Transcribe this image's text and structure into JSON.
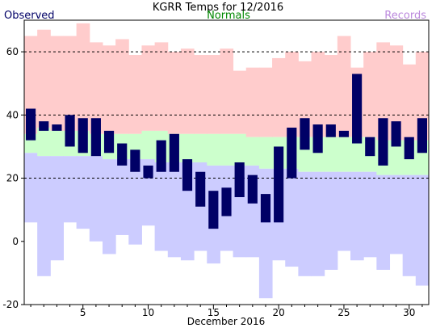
{
  "chart_data": {
    "type": "bar",
    "title": "KGRR Temps for 12/2016",
    "legend": {
      "observed": "Observed",
      "normals": "Normals",
      "records": "Records"
    },
    "xlabel": "December 2016",
    "ylabel": "",
    "xlim": [
      1,
      31
    ],
    "ylim": [
      -20,
      70
    ],
    "x_ticks": [
      5,
      10,
      15,
      20,
      25,
      30
    ],
    "y_ticks": [
      -20,
      0,
      20,
      40,
      60
    ],
    "gridlines_y": [
      20,
      40,
      60
    ],
    "grid": "dashed-horizontal",
    "colors": {
      "observed": "#000066",
      "normals": "#ccffcc",
      "record_high": "#ffcccc",
      "record_low": "#ccccff",
      "legend_observed": "#000066",
      "legend_normals": "#008800",
      "legend_records": "#bb88dd"
    },
    "days": [
      1,
      2,
      3,
      4,
      5,
      6,
      7,
      8,
      9,
      10,
      11,
      12,
      13,
      14,
      15,
      16,
      17,
      18,
      19,
      20,
      21,
      22,
      23,
      24,
      25,
      26,
      27,
      28,
      29,
      30,
      31
    ],
    "record_high": [
      65,
      67,
      65,
      65,
      69,
      63,
      62,
      64,
      59,
      62,
      63,
      60,
      61,
      59,
      59,
      61,
      54,
      55,
      55,
      58,
      60,
      57,
      60,
      59,
      65,
      55,
      60,
      63,
      62,
      56,
      60
    ],
    "record_low": [
      6,
      -11,
      -6,
      6,
      4,
      0,
      -4,
      2,
      -1,
      5,
      -3,
      -5,
      -6,
      -3,
      -7,
      -3,
      -5,
      -5,
      -18,
      -6,
      -8,
      -11,
      -11,
      -9,
      -3,
      -6,
      -5,
      -9,
      -4,
      -11,
      -14
    ],
    "normal_high": [
      34,
      36,
      35,
      35,
      35,
      34,
      34,
      34,
      34,
      35,
      35,
      34,
      34,
      34,
      34,
      34,
      34,
      33,
      33,
      33,
      33,
      33,
      33,
      33,
      33,
      33,
      33,
      32,
      32,
      32,
      32
    ],
    "normal_low": [
      28,
      27,
      27,
      27,
      27,
      27,
      26,
      26,
      26,
      26,
      25,
      25,
      25,
      25,
      24,
      24,
      24,
      24,
      23,
      23,
      23,
      22,
      22,
      22,
      22,
      22,
      22,
      21,
      21,
      21,
      21
    ],
    "observed_high": [
      42,
      38,
      37,
      40,
      39,
      39,
      35,
      31,
      29,
      24,
      32,
      34,
      26,
      22,
      16,
      17,
      25,
      21,
      15,
      30,
      36,
      39,
      37,
      37,
      35,
      53,
      33,
      39,
      38,
      33,
      39
    ],
    "observed_low": [
      32,
      35,
      35,
      30,
      28,
      27,
      28,
      24,
      22,
      20,
      22,
      22,
      16,
      11,
      4,
      8,
      14,
      12,
      6,
      6,
      20,
      29,
      28,
      33,
      33,
      31,
      27,
      24,
      30,
      26,
      28
    ]
  }
}
